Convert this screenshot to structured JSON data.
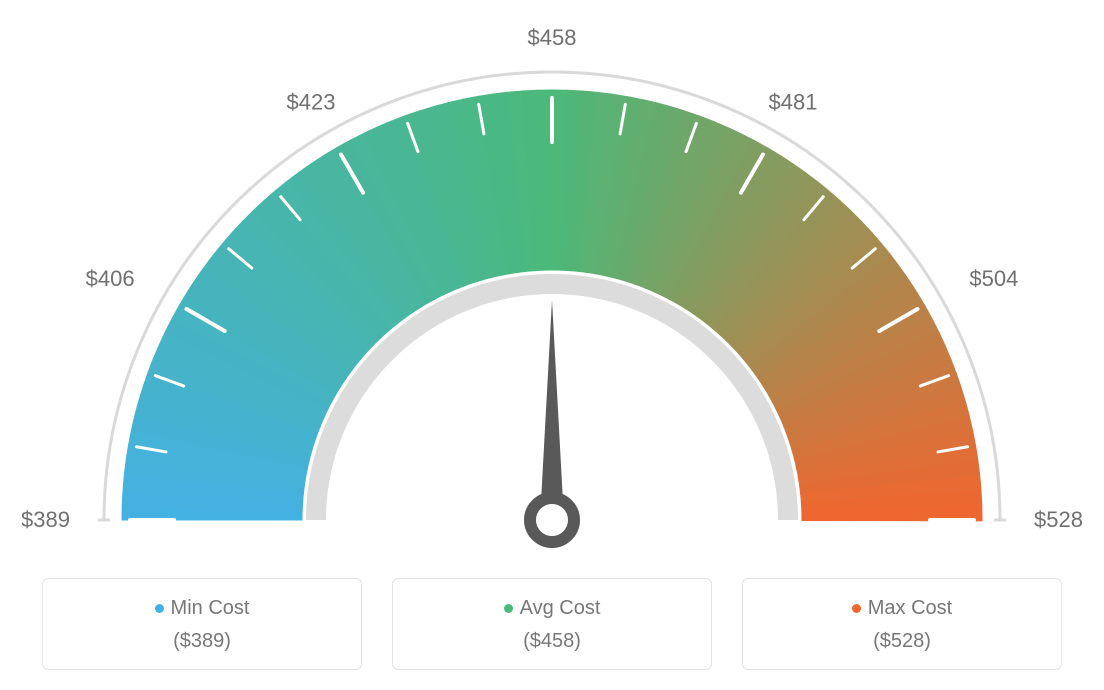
{
  "gauge": {
    "type": "gauge",
    "min": 389,
    "max": 528,
    "avg": 458,
    "tick_values": [
      389,
      406,
      423,
      458,
      481,
      504,
      528
    ],
    "tick_prefix": "$",
    "intermediate_ticks_per_gap": 2,
    "needle_value": 458,
    "arc_outer_radius": 430,
    "arc_inner_radius": 250,
    "scale_track_gap": 18,
    "scale_track_color": "#d9d9d9",
    "scale_track_width": 3,
    "gradient": {
      "start_color": "#44b1e4",
      "mid_color": "#4bb97a",
      "end_color": "#f0662f"
    },
    "tick_color": "#ffffff",
    "tick_label_color": "#707070",
    "tick_label_fontsize": 22,
    "needle_color": "#595959",
    "background_color": "#ffffff",
    "inner_ring_color": "#dcdcdc",
    "inner_ring_width": 20
  },
  "legend": {
    "min": {
      "label": "Min Cost",
      "value": "($389)",
      "dot_color": "#44b1e4"
    },
    "avg": {
      "label": "Avg Cost",
      "value": "($458)",
      "dot_color": "#4bb97a"
    },
    "max": {
      "label": "Max Cost",
      "value": "($528)",
      "dot_color": "#f0662f"
    }
  }
}
